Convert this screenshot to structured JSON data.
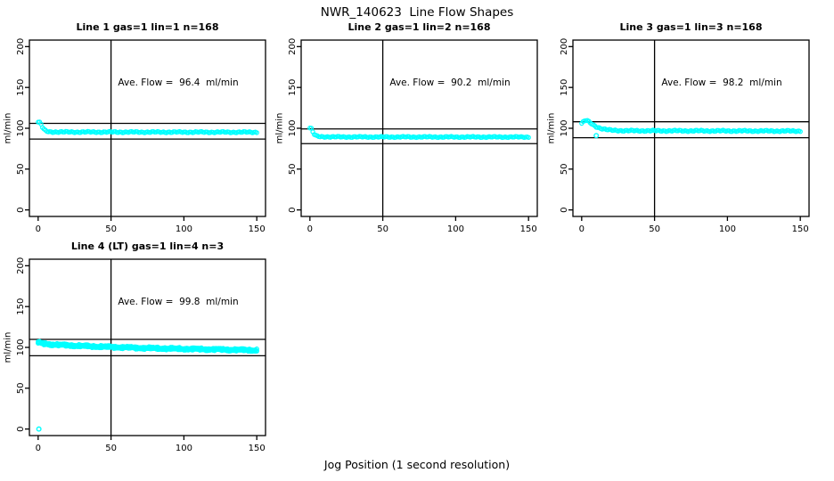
{
  "figure": {
    "title": "NWR_140623  Line Flow Shapes",
    "xlabel": "Jog Position (1 second resolution)"
  },
  "theme": {
    "point_color": "#00ffff",
    "axis_color": "#000000",
    "background": "#ffffff"
  },
  "chart_data": [
    {
      "type": "scatter",
      "title": "Line 1 gas=1 lin=1 n=168",
      "annotation": "Ave. Flow =  96.4  ml/min",
      "ave_flow_ml_min": 96.4,
      "ylabel": "ml/min",
      "xlim": [
        0,
        150
      ],
      "ylim": [
        0,
        200
      ],
      "x_ticks": [
        0,
        50,
        100,
        150
      ],
      "y_ticks": [
        0,
        50,
        100,
        150,
        200
      ],
      "vline_x": 50,
      "hlines_y": [
        106.0,
        86.8
      ],
      "flow_profile_keypoints": [
        [
          0,
          107.5
        ],
        [
          1,
          107
        ],
        [
          2,
          105
        ],
        [
          3,
          101
        ],
        [
          4,
          98.5
        ],
        [
          5,
          97
        ],
        [
          6,
          96.2
        ],
        [
          8,
          95.6
        ],
        [
          20,
          95.4
        ],
        [
          150,
          95.2
        ]
      ],
      "outlier_points": [],
      "overlay_runs": 1,
      "jitter": 0.55
    },
    {
      "type": "scatter",
      "title": "Line 2 gas=1 lin=2 n=168",
      "annotation": "Ave. Flow =  90.2  ml/min",
      "ave_flow_ml_min": 90.2,
      "ylabel": "ml/min",
      "xlim": [
        0,
        150
      ],
      "ylim": [
        0,
        200
      ],
      "x_ticks": [
        0,
        50,
        100,
        150
      ],
      "y_ticks": [
        0,
        50,
        100,
        150,
        200
      ],
      "vline_x": 50,
      "hlines_y": [
        99.2,
        81.2
      ],
      "flow_profile_keypoints": [
        [
          0,
          100.3
        ],
        [
          1,
          99.5
        ],
        [
          2,
          95.5
        ],
        [
          3,
          92.5
        ],
        [
          4,
          91
        ],
        [
          5,
          90.3
        ],
        [
          7,
          89.7
        ],
        [
          20,
          89.4
        ],
        [
          150,
          89.3
        ]
      ],
      "outlier_points": [],
      "overlay_runs": 1,
      "jitter": 0.5
    },
    {
      "type": "scatter",
      "title": "Line 3 gas=1 lin=3 n=168",
      "annotation": "Ave. Flow =  98.2  ml/min",
      "ave_flow_ml_min": 98.2,
      "ylabel": "ml/min",
      "xlim": [
        0,
        150
      ],
      "ylim": [
        0,
        200
      ],
      "x_ticks": [
        0,
        50,
        100,
        150
      ],
      "y_ticks": [
        0,
        50,
        100,
        150,
        200
      ],
      "vline_x": 50,
      "hlines_y": [
        108.0,
        88.4
      ],
      "flow_profile_keypoints": [
        [
          0,
          106
        ],
        [
          1,
          107.5
        ],
        [
          2,
          109
        ],
        [
          3,
          109.5
        ],
        [
          4,
          109
        ],
        [
          6,
          106.5
        ],
        [
          8,
          104
        ],
        [
          10,
          102
        ],
        [
          13,
          100
        ],
        [
          16,
          98.7
        ],
        [
          20,
          97.6
        ],
        [
          30,
          97
        ],
        [
          150,
          96.6
        ]
      ],
      "outlier_points": [
        [
          10,
          91
        ]
      ],
      "overlay_runs": 1,
      "jitter": 0.6
    },
    {
      "type": "scatter",
      "title": "Line 4 (LT) gas=1 lin=4 n=3",
      "annotation": "Ave. Flow =  99.8  ml/min",
      "ave_flow_ml_min": 99.8,
      "ylabel": "ml/min",
      "xlim": [
        0,
        150
      ],
      "ylim": [
        0,
        200
      ],
      "x_ticks": [
        0,
        50,
        100,
        150
      ],
      "y_ticks": [
        0,
        50,
        100,
        150,
        200
      ],
      "vline_x": 50,
      "hlines_y": [
        109.8,
        89.8
      ],
      "flow_profile_keypoints": [
        [
          0,
          105.5
        ],
        [
          1,
          106
        ],
        [
          2,
          105
        ],
        [
          4,
          104.5
        ],
        [
          8,
          103.8
        ],
        [
          15,
          103
        ],
        [
          30,
          101.8
        ],
        [
          50,
          100.5
        ],
        [
          70,
          99.3
        ],
        [
          100,
          98.2
        ],
        [
          130,
          97.2
        ],
        [
          150,
          96.6
        ]
      ],
      "outlier_points": [
        [
          0.5,
          0
        ]
      ],
      "overlay_runs": 3,
      "jitter": 1.1
    }
  ]
}
